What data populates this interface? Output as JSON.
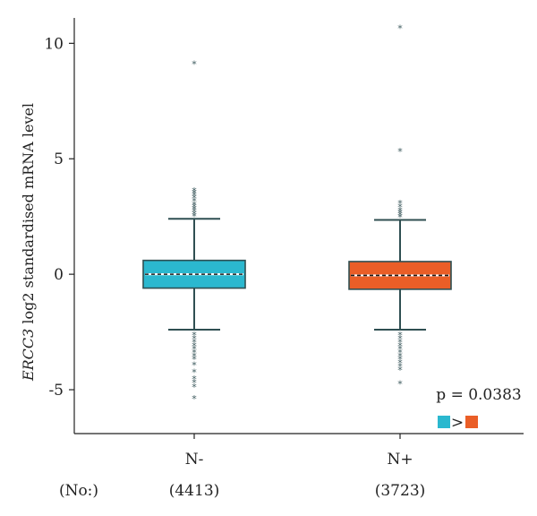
{
  "chart_data": {
    "type": "box",
    "ylabel_italic": "ERCC3",
    "ylabel_rest": " log2 standardised mRNA level",
    "ylim": [
      -6.9,
      11.1
    ],
    "yticks": [
      -5,
      0,
      5,
      10
    ],
    "count_header": "(No:)",
    "p_value_text": "p = 0.0383",
    "comparison_symbol": ">",
    "groups": [
      {
        "name": "N-",
        "count_label": "(4413)",
        "color": "#2bb8cf",
        "q1": -0.6,
        "median": 0.0,
        "q3": 0.6,
        "whisker_low": -2.4,
        "whisker_high": 2.4,
        "outliers": [
          3.65,
          3.55,
          3.45,
          3.35,
          3.2,
          3.05,
          2.95,
          2.85,
          2.75,
          2.65,
          2.55,
          9.15,
          -2.6,
          -2.75,
          -2.9,
          -3.05,
          -3.2,
          -3.35,
          -3.5,
          -3.65,
          -3.9,
          -4.2,
          -4.5,
          -4.65,
          -4.85,
          -5.35
        ]
      },
      {
        "name": "N+",
        "count_label": "(3723)",
        "color": "#ea5e27",
        "q1": -0.65,
        "median": -0.05,
        "q3": 0.55,
        "whisker_low": -2.4,
        "whisker_high": 2.35,
        "outliers": [
          10.7,
          5.35,
          3.1,
          2.95,
          2.8,
          2.7,
          2.6,
          2.5,
          -2.6,
          -2.75,
          -2.9,
          -3.05,
          -3.2,
          -3.35,
          -3.5,
          -3.65,
          -3.8,
          -3.95,
          -4.1,
          -4.7
        ]
      }
    ]
  }
}
